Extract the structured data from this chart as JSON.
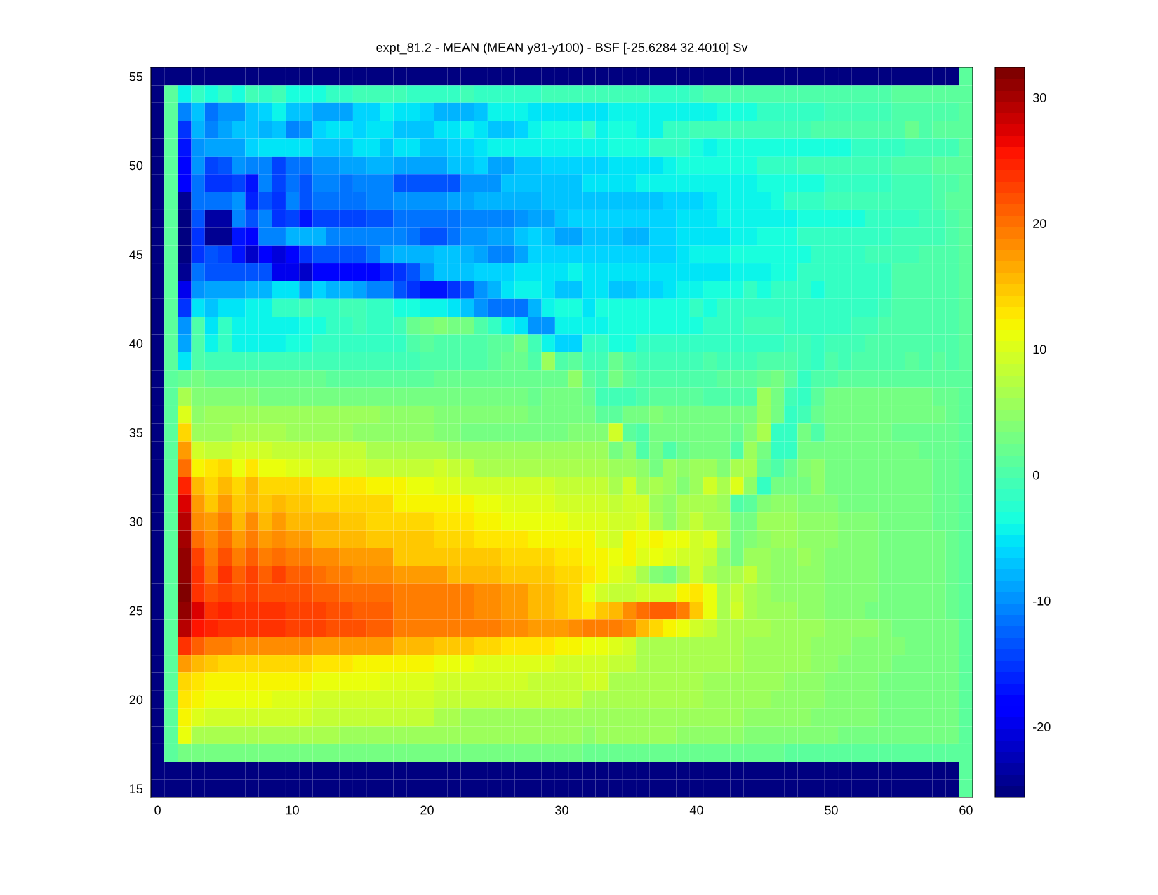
{
  "chart_data": {
    "type": "heatmap",
    "title": "expt_81.2 - MEAN (MEAN y81-y100) - BSF [-25.6284 32.4010] Sv",
    "categories": [
      "0",
      null,
      null,
      null,
      null,
      null,
      null,
      null,
      null,
      null,
      "10",
      null,
      null,
      null,
      null,
      null,
      null,
      null,
      null,
      null,
      "20",
      null,
      null,
      null,
      null,
      null,
      null,
      null,
      null,
      null,
      "30",
      null,
      null,
      null,
      null,
      null,
      null,
      null,
      null,
      null,
      "40",
      null,
      null,
      null,
      null,
      null,
      null,
      null,
      null,
      null,
      "50",
      null,
      null,
      null,
      null,
      null,
      null,
      null,
      null,
      null,
      "60"
    ],
    "y_categories": [
      "55",
      null,
      null,
      null,
      null,
      "50",
      null,
      null,
      null,
      null,
      "45",
      null,
      null,
      null,
      null,
      "40",
      null,
      null,
      null,
      null,
      "35",
      null,
      null,
      null,
      null,
      "30",
      null,
      null,
      null,
      null,
      "25",
      null,
      null,
      null,
      null,
      "20",
      null,
      null,
      null,
      null,
      "15"
    ],
    "cells": [
      [
        -25,
        -25,
        -25,
        -25,
        -25,
        -25,
        -25,
        -25,
        -25,
        -25,
        -25,
        -25,
        -25,
        -25,
        -25,
        -25,
        -25,
        -25,
        -25,
        -25,
        -25,
        -25,
        -25,
        -25,
        -25,
        -25,
        -25,
        -25,
        -25,
        -25,
        -25,
        -25,
        -25,
        -25,
        -25,
        -25,
        -25,
        -25,
        -25,
        -25,
        -25,
        -25,
        -25,
        -25,
        -25,
        -25,
        -25,
        -25,
        -25,
        -25,
        -25,
        -25,
        -25,
        -25,
        -25,
        -25,
        -25,
        -25,
        -25,
        -25,
        1
      ],
      [
        -25,
        1,
        -4,
        -2,
        -3,
        -2,
        -3,
        -1,
        -2,
        -1,
        -3,
        -3,
        -3,
        -2,
        -2,
        -1,
        -1,
        -1,
        -1,
        -2,
        -2,
        -2,
        -2,
        -1,
        -2,
        -2,
        -2,
        -2,
        -2,
        -1,
        -1,
        -1,
        -1,
        -1,
        -1,
        -1,
        -1,
        -2,
        -2,
        -2,
        -1,
        0,
        0,
        0,
        0,
        0,
        0,
        0,
        0,
        0,
        0,
        0,
        0,
        0,
        0,
        1,
        1,
        1,
        1,
        1,
        1
      ],
      [
        -25,
        1,
        -11,
        -7,
        -12,
        -10,
        -10,
        -7,
        -6,
        -4,
        -7,
        -7,
        -9,
        -9,
        -9,
        -6,
        -6,
        -4,
        -5,
        -5,
        -6,
        -8,
        -8,
        -8,
        -7,
        -4,
        -4,
        -4,
        -5,
        -5,
        -5,
        -5,
        -5,
        -5,
        -4,
        -4,
        -4,
        -4,
        -4,
        -4,
        -4,
        -4,
        -3,
        -3,
        -3,
        -2,
        -2,
        -2,
        -2,
        -2,
        -1,
        -1,
        -1,
        -1,
        -1,
        0,
        0,
        0,
        0,
        0,
        1
      ],
      [
        -25,
        1,
        -15,
        -8,
        -11,
        -9,
        -7,
        -7,
        -8,
        -7,
        -11,
        -10,
        -6,
        -5,
        -5,
        -6,
        -5,
        -5,
        -7,
        -7,
        -7,
        -5,
        -5,
        -4,
        -5,
        -7,
        -7,
        -6,
        -4,
        -3,
        -3,
        -3,
        -2,
        -4,
        -3,
        -3,
        -4,
        -4,
        -2,
        -2,
        -1,
        -1,
        -1,
        -1,
        -1,
        -1,
        -1,
        -1,
        -1,
        0,
        0,
        0,
        0,
        0,
        0,
        0,
        2,
        0,
        1,
        1,
        1
      ],
      [
        -25,
        1,
        -17,
        -10,
        -9,
        -9,
        -9,
        -6,
        -5,
        -5,
        -5,
        -5,
        -7,
        -7,
        -7,
        -5,
        -5,
        -7,
        -5,
        -5,
        -7,
        -7,
        -6,
        -6,
        -5,
        -4,
        -4,
        -4,
        -4,
        -4,
        -4,
        -4,
        -4,
        -4,
        -3,
        -3,
        -3,
        -2,
        -2,
        -2,
        -3,
        -4,
        -3,
        -3,
        -3,
        -3,
        -3,
        -3,
        -3,
        -3,
        -3,
        -3,
        -2,
        -2,
        -2,
        -2,
        -1,
        -1,
        -1,
        -1,
        1
      ],
      [
        -25,
        1,
        -18,
        -10,
        -14,
        -13,
        -10,
        -11,
        -11,
        -14,
        -12,
        -12,
        -10,
        -10,
        -9,
        -9,
        -8,
        -8,
        -9,
        -9,
        -9,
        -9,
        -7,
        -7,
        -6,
        -9,
        -9,
        -7,
        -7,
        -6,
        -6,
        -6,
        -6,
        -6,
        -5,
        -5,
        -5,
        -5,
        -4,
        -3,
        -3,
        -3,
        -3,
        -3,
        -3,
        -2,
        -2,
        -2,
        -1,
        -1,
        -1,
        -1,
        -1,
        -1,
        -1,
        0,
        0,
        0,
        1,
        1,
        1
      ],
      [
        -25,
        1,
        -19,
        -12,
        -15,
        -15,
        -14,
        -17,
        -11,
        -14,
        -12,
        -13,
        -11,
        -11,
        -12,
        -11,
        -11,
        -11,
        -13,
        -13,
        -13,
        -13,
        -13,
        -10,
        -10,
        -10,
        -7,
        -7,
        -7,
        -7,
        -7,
        -7,
        -5,
        -5,
        -5,
        -5,
        -4,
        -4,
        -4,
        -4,
        -4,
        -4,
        -4,
        -4,
        -4,
        -3,
        -3,
        -3,
        -3,
        -3,
        -2,
        -2,
        -2,
        -2,
        -2,
        -1,
        -1,
        -1,
        0,
        0,
        1
      ],
      [
        -25,
        1,
        -24,
        -12,
        -12,
        -12,
        -10,
        -16,
        -13,
        -15,
        -11,
        -13,
        -12,
        -12,
        -12,
        -12,
        -11,
        -11,
        -10,
        -10,
        -10,
        -10,
        -9,
        -9,
        -8,
        -8,
        -8,
        -8,
        -8,
        -7,
        -7,
        -7,
        -7,
        -7,
        -7,
        -7,
        -7,
        -7,
        -6,
        -6,
        -6,
        -5,
        -4,
        -4,
        -4,
        -4,
        -3,
        -2,
        -2,
        -2,
        -1,
        -1,
        -1,
        -1,
        -1,
        -1,
        -1,
        -1,
        0,
        1,
        1
      ],
      [
        -25,
        1,
        -25,
        -13,
        -23,
        -23,
        -11,
        -13,
        -11,
        -15,
        -14,
        -17,
        -14,
        -14,
        -14,
        -14,
        -13,
        -13,
        -12,
        -12,
        -12,
        -12,
        -12,
        -11,
        -11,
        -11,
        -11,
        -10,
        -9,
        -9,
        -7,
        -6,
        -6,
        -6,
        -6,
        -6,
        -6,
        -6,
        -6,
        -5,
        -5,
        -5,
        -4,
        -4,
        -4,
        -4,
        -4,
        -4,
        -3,
        -3,
        -3,
        -3,
        -3,
        -2,
        -2,
        -2,
        -2,
        -1,
        -1,
        0,
        1
      ],
      [
        -25,
        1,
        -25,
        -15,
        -24,
        -24,
        -17,
        -18,
        -11,
        -11,
        -8,
        -8,
        -8,
        -11,
        -11,
        -11,
        -11,
        -11,
        -11,
        -12,
        -13,
        -13,
        -12,
        -10,
        -10,
        -9,
        -9,
        -7,
        -6,
        -7,
        -9,
        -9,
        -7,
        -7,
        -7,
        -8,
        -8,
        -6,
        -6,
        -5,
        -5,
        -5,
        -5,
        -4,
        -4,
        -3,
        -3,
        -3,
        -2,
        -2,
        -2,
        -2,
        -2,
        -2,
        -2,
        -1,
        -1,
        -1,
        -1,
        0,
        1
      ],
      [
        -25,
        1,
        -25,
        -15,
        -13,
        -14,
        -17,
        -22,
        -19,
        -21,
        -18,
        -15,
        -13,
        -13,
        -13,
        -13,
        -12,
        -9,
        -8,
        -8,
        -8,
        -7,
        -7,
        -8,
        -9,
        -11,
        -11,
        -9,
        -6,
        -6,
        -6,
        -6,
        -6,
        -6,
        -6,
        -6,
        -6,
        -6,
        -6,
        -5,
        -4,
        -4,
        -4,
        -3,
        -3,
        -3,
        -3,
        -3,
        -3,
        -2,
        -2,
        -2,
        -2,
        -1,
        -1,
        -1,
        -1,
        0,
        0,
        0,
        1
      ],
      [
        -25,
        1,
        -24,
        -12,
        -13,
        -13,
        -13,
        -13,
        -13,
        -20,
        -20,
        -22,
        -18,
        -18,
        -18,
        -18,
        -18,
        -16,
        -15,
        -13,
        -10,
        -7,
        -7,
        -7,
        -6,
        -6,
        -6,
        -5,
        -5,
        -5,
        -5,
        -4,
        -5,
        -5,
        -5,
        -5,
        -5,
        -5,
        -5,
        -5,
        -5,
        -5,
        -5,
        -4,
        -4,
        -4,
        -3,
        -3,
        -2,
        -2,
        -2,
        -2,
        -2,
        -2,
        -2,
        0,
        0,
        0,
        0,
        0,
        1
      ],
      [
        -25,
        1,
        -20,
        -10,
        -9,
        -9,
        -9,
        -8,
        -8,
        -5,
        -5,
        -9,
        -6,
        -8,
        -8,
        -9,
        -11,
        -11,
        -13,
        -15,
        -17,
        -17,
        -15,
        -13,
        -10,
        -8,
        -5,
        -4,
        -4,
        -5,
        -7,
        -7,
        -5,
        -5,
        -7,
        -7,
        -6,
        -6,
        -5,
        -4,
        -4,
        -3,
        -3,
        -3,
        -2,
        -3,
        -2,
        -2,
        -2,
        -3,
        -2,
        -2,
        -2,
        -2,
        -2,
        0,
        0,
        0,
        0,
        0,
        1
      ],
      [
        -25,
        1,
        -15,
        -5,
        -7,
        -5,
        -5,
        -4,
        -4,
        -2,
        -2,
        -1,
        -2,
        -2,
        -1,
        -1,
        -2,
        -2,
        -3,
        -3,
        -4,
        -4,
        -5,
        -7,
        -10,
        -12,
        -12,
        -12,
        -8,
        -4,
        -3,
        -3,
        -5,
        -3,
        -3,
        -3,
        -3,
        -3,
        -3,
        -3,
        -2,
        -3,
        -2,
        -2,
        -2,
        -2,
        -2,
        -2,
        -2,
        -2,
        -2,
        -2,
        -2,
        -2,
        -1,
        0,
        0,
        0,
        0,
        0,
        1
      ],
      [
        -25,
        1,
        -10,
        0,
        -5,
        -2,
        -4,
        -4,
        -4,
        -4,
        -4,
        -3,
        -3,
        -2,
        -2,
        -1,
        -2,
        -2,
        -1,
        2,
        3,
        4,
        3,
        3,
        0,
        -2,
        -4,
        -5,
        -10,
        -10,
        -4,
        -4,
        -4,
        -4,
        -3,
        -3,
        -3,
        -3,
        -3,
        -3,
        -3,
        -2,
        -2,
        -2,
        -1,
        -1,
        -1,
        -2,
        -2,
        -2,
        -2,
        -2,
        -1,
        -1,
        0,
        0,
        0,
        0,
        0,
        0,
        1
      ],
      [
        -25,
        1,
        -9,
        0,
        -4,
        -2,
        -4,
        -4,
        -4,
        -4,
        -3,
        -3,
        -2,
        -2,
        -2,
        -2,
        -2,
        -2,
        -2,
        0,
        1,
        0,
        0,
        0,
        0,
        1,
        1,
        3,
        -1,
        -4,
        -6,
        -6,
        -2,
        -2,
        -3,
        -3,
        -2,
        -2,
        -2,
        -2,
        -2,
        -2,
        -2,
        -2,
        -2,
        -2,
        -2,
        -1,
        -1,
        -2,
        -1,
        -1,
        -1,
        0,
        0,
        0,
        0,
        0,
        0,
        0,
        1
      ],
      [
        -25,
        1,
        -5,
        0,
        -1,
        -1,
        -1,
        -1,
        -1,
        -1,
        -1,
        -1,
        -1,
        -1,
        -1,
        -1,
        -1,
        -1,
        -1,
        -1,
        0,
        0,
        0,
        0,
        0,
        1,
        2,
        2,
        0,
        6,
        0,
        1,
        -1,
        -1,
        2,
        0,
        -1,
        -1,
        -1,
        -1,
        -1,
        0,
        -1,
        -1,
        -1,
        0,
        0,
        0,
        -1,
        -2,
        0,
        -1,
        0,
        0,
        0,
        0,
        1,
        0,
        1,
        0,
        1
      ],
      [
        -25,
        1,
        2,
        3,
        2,
        2,
        2,
        2,
        2,
        2,
        2,
        2,
        2,
        1,
        1,
        1,
        1,
        1,
        1,
        1,
        1,
        2,
        2,
        2,
        2,
        2,
        2,
        2,
        2,
        2,
        2,
        5,
        1,
        0,
        3,
        1,
        0,
        0,
        0,
        0,
        0,
        0,
        1,
        1,
        1,
        2,
        3,
        1,
        -2,
        0,
        0,
        1,
        1,
        1,
        1,
        1,
        1,
        1,
        1,
        1,
        1
      ],
      [
        -25,
        1,
        7,
        4,
        4,
        4,
        4,
        4,
        3,
        3,
        3,
        3,
        3,
        3,
        3,
        3,
        3,
        3,
        3,
        3,
        3,
        3,
        3,
        3,
        3,
        3,
        3,
        3,
        2,
        3,
        3,
        3,
        2,
        -1,
        -1,
        -1,
        0,
        1,
        1,
        1,
        1,
        0,
        0,
        0,
        0,
        6,
        3,
        -1,
        -2,
        1,
        3,
        3,
        3,
        3,
        3,
        3,
        3,
        3,
        2,
        2,
        1
      ],
      [
        -25,
        1,
        10,
        5,
        6,
        6,
        6,
        6,
        6,
        6,
        6,
        6,
        6,
        6,
        6,
        6,
        6,
        5,
        5,
        5,
        5,
        4,
        4,
        4,
        4,
        4,
        4,
        4,
        3,
        3,
        3,
        3,
        3,
        1,
        1,
        3,
        3,
        4,
        3,
        3,
        3,
        3,
        3,
        3,
        3,
        6,
        3,
        -2,
        -1,
        2,
        3,
        3,
        3,
        3,
        3,
        3,
        3,
        3,
        3,
        2,
        1
      ],
      [
        -25,
        1,
        14,
        6,
        6,
        6,
        7,
        7,
        7,
        7,
        6,
        6,
        6,
        6,
        6,
        5,
        5,
        5,
        5,
        5,
        5,
        4,
        4,
        3,
        3,
        3,
        3,
        3,
        3,
        3,
        3,
        4,
        4,
        4,
        9,
        1,
        0,
        3,
        3,
        3,
        3,
        3,
        3,
        2,
        4,
        7,
        -2,
        -2,
        3,
        0,
        3,
        3,
        3,
        3,
        3,
        2,
        2,
        2,
        2,
        2,
        1
      ],
      [
        -25,
        1,
        17,
        9,
        8,
        8,
        9,
        9,
        9,
        8,
        8,
        8,
        8,
        8,
        8,
        8,
        7,
        7,
        7,
        7,
        7,
        7,
        6,
        6,
        6,
        6,
        6,
        6,
        6,
        6,
        6,
        6,
        6,
        6,
        3,
        5,
        0,
        3,
        0,
        2,
        3,
        3,
        3,
        0,
        6,
        3,
        -2,
        -2,
        3,
        3,
        3,
        3,
        3,
        3,
        3,
        3,
        3,
        2,
        2,
        2,
        1
      ],
      [
        -25,
        1,
        20,
        12,
        13,
        14,
        11,
        13,
        11,
        11,
        10,
        10,
        9,
        9,
        9,
        9,
        8,
        8,
        8,
        8,
        8,
        9,
        8,
        8,
        7,
        7,
        7,
        7,
        7,
        7,
        7,
        7,
        7,
        7,
        6,
        6,
        5,
        3,
        6,
        5,
        6,
        6,
        4,
        7,
        7,
        2,
        0,
        2,
        4,
        5,
        3,
        3,
        3,
        3,
        3,
        3,
        3,
        3,
        2,
        2,
        1
      ],
      [
        -25,
        1,
        25,
        16,
        14,
        16,
        14,
        16,
        14,
        14,
        14,
        14,
        13,
        13,
        13,
        13,
        12,
        12,
        12,
        11,
        11,
        10,
        10,
        9,
        9,
        9,
        9,
        9,
        9,
        9,
        8,
        8,
        8,
        8,
        7,
        9,
        6,
        7,
        6,
        4,
        6,
        9,
        7,
        10,
        5,
        -2,
        3,
        3,
        3,
        5,
        3,
        3,
        3,
        3,
        3,
        3,
        3,
        3,
        2,
        2,
        1
      ],
      [
        -25,
        1,
        27,
        17,
        15,
        17,
        15,
        16,
        15,
        16,
        15,
        15,
        14,
        14,
        14,
        14,
        14,
        14,
        12,
        12,
        12,
        12,
        12,
        12,
        11,
        11,
        10,
        10,
        10,
        10,
        9,
        9,
        9,
        9,
        8,
        9,
        9,
        6,
        5,
        7,
        7,
        7,
        6,
        0,
        1,
        4,
        5,
        5,
        4,
        4,
        4,
        3,
        3,
        3,
        3,
        3,
        3,
        3,
        2,
        2,
        1
      ],
      [
        -25,
        1,
        29,
        18,
        17,
        19,
        16,
        18,
        16,
        17,
        16,
        16,
        16,
        16,
        15,
        15,
        14,
        14,
        14,
        14,
        14,
        13,
        13,
        13,
        12,
        12,
        11,
        11,
        11,
        11,
        11,
        10,
        10,
        10,
        9,
        9,
        10,
        7,
        5,
        7,
        8,
        7,
        7,
        3,
        3,
        6,
        6,
        6,
        5,
        5,
        5,
        4,
        4,
        4,
        3,
        3,
        3,
        3,
        2,
        2,
        1
      ],
      [
        -25,
        1,
        30,
        20,
        18,
        20,
        17,
        19,
        17,
        18,
        17,
        17,
        16,
        16,
        16,
        16,
        15,
        15,
        15,
        15,
        15,
        14,
        14,
        14,
        13,
        13,
        13,
        13,
        12,
        12,
        12,
        12,
        12,
        10,
        9,
        12,
        11,
        12,
        11,
        11,
        9,
        10,
        7,
        3,
        4,
        5,
        6,
        6,
        5,
        5,
        5,
        4,
        4,
        4,
        3,
        3,
        3,
        3,
        3,
        2,
        1
      ],
      [
        -25,
        1,
        31,
        23,
        19,
        22,
        19,
        21,
        19,
        20,
        19,
        19,
        18,
        18,
        17,
        17,
        17,
        17,
        15,
        15,
        15,
        15,
        15,
        15,
        15,
        15,
        14,
        14,
        14,
        14,
        13,
        13,
        12,
        12,
        11,
        12,
        10,
        11,
        10,
        9,
        9,
        8,
        5,
        3,
        6,
        6,
        5,
        5,
        6,
        5,
        4,
        4,
        4,
        4,
        3,
        3,
        3,
        3,
        3,
        2,
        1
      ],
      [
        -25,
        1,
        31,
        24,
        20,
        24,
        21,
        23,
        21,
        23,
        21,
        21,
        20,
        19,
        19,
        18,
        18,
        18,
        17,
        17,
        17,
        17,
        16,
        16,
        16,
        16,
        15,
        15,
        15,
        15,
        14,
        14,
        13,
        12,
        10,
        9,
        7,
        4,
        3,
        6,
        9,
        7,
        6,
        7,
        8,
        6,
        5,
        5,
        5,
        5,
        4,
        4,
        4,
        4,
        3,
        3,
        3,
        3,
        3,
        2,
        1
      ],
      [
        -25,
        1,
        32,
        24,
        22,
        23,
        22,
        23,
        22,
        22,
        22,
        22,
        21,
        21,
        20,
        20,
        20,
        20,
        19,
        19,
        19,
        19,
        19,
        19,
        18,
        18,
        17,
        17,
        16,
        16,
        15,
        14,
        11,
        9,
        8,
        8,
        9,
        9,
        9,
        12,
        13,
        11,
        7,
        8,
        7,
        6,
        5,
        5,
        5,
        5,
        4,
        4,
        4,
        4,
        3,
        3,
        3,
        3,
        3,
        2,
        1
      ],
      [
        -25,
        1,
        31,
        27,
        24,
        25,
        24,
        24,
        24,
        24,
        23,
        23,
        23,
        22,
        22,
        21,
        21,
        21,
        19,
        19,
        19,
        19,
        19,
        19,
        18,
        18,
        17,
        17,
        16,
        16,
        15,
        14,
        13,
        15,
        16,
        18,
        20,
        21,
        21,
        19,
        15,
        11,
        7,
        9,
        7,
        6,
        6,
        6,
        5,
        5,
        4,
        4,
        4,
        3,
        3,
        3,
        3,
        3,
        3,
        2,
        1
      ],
      [
        -25,
        1,
        29,
        26,
        25,
        24,
        24,
        24,
        24,
        24,
        23,
        23,
        23,
        22,
        22,
        22,
        21,
        21,
        19,
        19,
        19,
        19,
        19,
        19,
        19,
        19,
        18,
        18,
        17,
        17,
        17,
        18,
        19,
        19,
        19,
        18,
        16,
        14,
        12,
        11,
        9,
        8,
        7,
        7,
        7,
        7,
        6,
        6,
        6,
        6,
        5,
        5,
        5,
        5,
        4,
        3,
        3,
        3,
        3,
        3,
        1
      ],
      [
        -25,
        1,
        24,
        21,
        19,
        19,
        18,
        18,
        18,
        18,
        18,
        18,
        17,
        17,
        17,
        17,
        17,
        17,
        16,
        16,
        16,
        15,
        15,
        15,
        14,
        14,
        13,
        13,
        13,
        13,
        12,
        12,
        11,
        11,
        10,
        9,
        7,
        7,
        7,
        7,
        7,
        7,
        7,
        7,
        6,
        6,
        6,
        6,
        6,
        5,
        5,
        5,
        4,
        4,
        4,
        4,
        3,
        3,
        3,
        3,
        1
      ],
      [
        -25,
        1,
        17,
        16,
        15,
        14,
        14,
        14,
        14,
        14,
        14,
        14,
        13,
        13,
        13,
        12,
        12,
        12,
        12,
        12,
        12,
        11,
        11,
        11,
        10,
        10,
        10,
        10,
        10,
        10,
        9,
        9,
        9,
        9,
        8,
        8,
        7,
        7,
        7,
        7,
        7,
        7,
        7,
        7,
        6,
        6,
        6,
        6,
        6,
        5,
        5,
        4,
        4,
        4,
        4,
        3,
        3,
        3,
        3,
        3,
        1
      ],
      [
        -25,
        1,
        14,
        13,
        12,
        12,
        12,
        12,
        12,
        12,
        12,
        12,
        11,
        11,
        11,
        11,
        11,
        10,
        10,
        10,
        10,
        9,
        9,
        9,
        9,
        9,
        9,
        9,
        8,
        8,
        8,
        8,
        9,
        9,
        7,
        7,
        7,
        7,
        7,
        7,
        7,
        6,
        6,
        6,
        6,
        6,
        6,
        5,
        5,
        5,
        4,
        4,
        4,
        4,
        3,
        3,
        3,
        3,
        3,
        3,
        1
      ],
      [
        -25,
        1,
        13,
        12,
        11,
        11,
        11,
        11,
        11,
        10,
        10,
        10,
        9,
        9,
        9,
        9,
        9,
        9,
        9,
        9,
        9,
        8,
        8,
        8,
        8,
        8,
        8,
        8,
        8,
        8,
        8,
        8,
        7,
        7,
        7,
        7,
        7,
        7,
        7,
        7,
        7,
        6,
        6,
        6,
        6,
        6,
        5,
        5,
        5,
        5,
        4,
        4,
        4,
        4,
        3,
        3,
        3,
        3,
        3,
        3,
        1
      ],
      [
        -25,
        1,
        12,
        10,
        9,
        9,
        9,
        9,
        9,
        9,
        9,
        9,
        8,
        8,
        8,
        8,
        8,
        8,
        8,
        8,
        8,
        7,
        7,
        6,
        6,
        6,
        6,
        6,
        6,
        6,
        6,
        6,
        6,
        6,
        6,
        6,
        6,
        6,
        6,
        6,
        6,
        6,
        6,
        6,
        5,
        5,
        5,
        5,
        5,
        4,
        4,
        4,
        4,
        4,
        3,
        3,
        3,
        3,
        3,
        3,
        1
      ],
      [
        -25,
        1,
        11,
        7,
        7,
        7,
        7,
        7,
        7,
        7,
        7,
        7,
        7,
        7,
        6,
        6,
        6,
        6,
        6,
        6,
        6,
        6,
        6,
        6,
        6,
        6,
        6,
        6,
        6,
        6,
        6,
        6,
        5,
        6,
        6,
        6,
        6,
        6,
        6,
        5,
        5,
        5,
        5,
        5,
        4,
        4,
        4,
        4,
        4,
        4,
        4,
        3,
        3,
        3,
        3,
        3,
        3,
        3,
        3,
        3,
        1
      ],
      [
        -25,
        1,
        3,
        3,
        3,
        3,
        3,
        3,
        3,
        3,
        3,
        3,
        3,
        3,
        3,
        3,
        3,
        3,
        3,
        3,
        3,
        3,
        3,
        3,
        3,
        3,
        3,
        3,
        3,
        3,
        3,
        3,
        2,
        2,
        2,
        2,
        2,
        2,
        2,
        2,
        2,
        2,
        2,
        2,
        2,
        2,
        2,
        1,
        1,
        1,
        1,
        1,
        1,
        1,
        1,
        1,
        1,
        1,
        1,
        1,
        1
      ],
      [
        -25,
        -25,
        -25,
        -25,
        -25,
        -25,
        -25,
        -25,
        -25,
        -25,
        -25,
        -25,
        -25,
        -25,
        -25,
        -25,
        -25,
        -25,
        -25,
        -25,
        -25,
        -25,
        -25,
        -25,
        -25,
        -25,
        -25,
        -25,
        -25,
        -25,
        -25,
        -25,
        -25,
        -25,
        -25,
        -25,
        -25,
        -25,
        -25,
        -25,
        -25,
        -25,
        -25,
        -25,
        -25,
        -25,
        -25,
        -25,
        -25,
        -25,
        -25,
        -25,
        -25,
        -25,
        -25,
        -25,
        -25,
        -25,
        -25,
        -25,
        1
      ],
      [
        -25,
        -25,
        -25,
        -25,
        -25,
        -25,
        -25,
        -25,
        -25,
        -25,
        -25,
        -25,
        -25,
        -25,
        -25,
        -25,
        -25,
        -25,
        -25,
        -25,
        -25,
        -25,
        -25,
        -25,
        -25,
        -25,
        -25,
        -25,
        -25,
        -25,
        -25,
        -25,
        -25,
        -25,
        -25,
        -25,
        -25,
        -25,
        -25,
        -25,
        -25,
        -25,
        -25,
        -25,
        -25,
        -25,
        -25,
        -25,
        -25,
        -25,
        -25,
        -25,
        -25,
        -25,
        -25,
        -25,
        -25,
        -25,
        -25,
        -25,
        1
      ]
    ],
    "clim": [
      -25.6284,
      32.401
    ],
    "cticks": [
      -20,
      -10,
      0,
      10,
      20,
      30
    ]
  }
}
